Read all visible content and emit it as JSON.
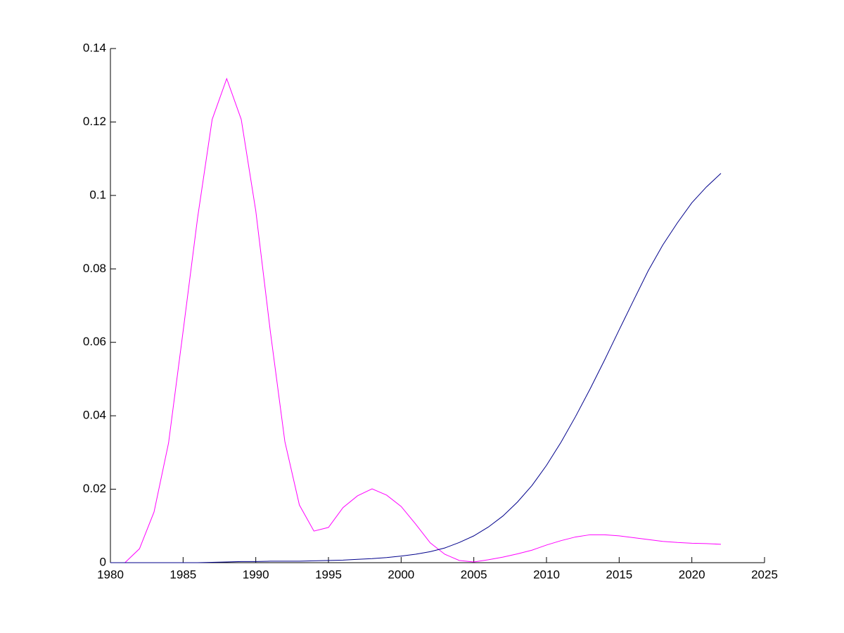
{
  "chart_data": {
    "type": "line",
    "x": [
      1980,
      1981,
      1982,
      1983,
      1984,
      1985,
      1986,
      1987,
      1988,
      1989,
      1990,
      1991,
      1992,
      1993,
      1994,
      1995,
      1996,
      1997,
      1998,
      1999,
      2000,
      2001,
      2002,
      2003,
      2004,
      2005,
      2006,
      2007,
      2008,
      2009,
      2010,
      2011,
      2012,
      2013,
      2014,
      2015,
      2016,
      2017,
      2018,
      2019,
      2020,
      2021,
      2022
    ],
    "series": [
      {
        "color": "#ff00ff",
        "values": [
          0,
          0,
          0.0038,
          0.0138,
          0.0326,
          0.063,
          0.094,
          0.1207,
          0.1318,
          0.1207,
          0.0958,
          0.063,
          0.033,
          0.0157,
          0.0086,
          0.0096,
          0.015,
          0.0182,
          0.0201,
          0.0184,
          0.0153,
          0.0105,
          0.0054,
          0.0023,
          0.0006,
          0.0002,
          0.0008,
          0.0015,
          0.0024,
          0.0034,
          0.0048,
          0.006,
          0.007,
          0.0076,
          0.0076,
          0.0073,
          0.0068,
          0.0063,
          0.0058,
          0.0055,
          0.0053,
          0.0052,
          0.005
        ]
      },
      {
        "color": "#00008b",
        "values": [
          0,
          0,
          0,
          0,
          0,
          0,
          0,
          0.0001,
          0.0002,
          0.0003,
          0.0003,
          0.0004,
          0.0004,
          0.0004,
          0.0005,
          0.0006,
          0.0007,
          0.0009,
          0.0011,
          0.0014,
          0.0018,
          0.0023,
          0.003,
          0.004,
          0.0055,
          0.0073,
          0.0097,
          0.0127,
          0.0165,
          0.021,
          0.0265,
          0.0328,
          0.0398,
          0.0473,
          0.0552,
          0.0634,
          0.0715,
          0.0795,
          0.0865,
          0.0925,
          0.098,
          0.1023,
          0.106
        ]
      }
    ],
    "xlim": [
      1980,
      2025
    ],
    "xticks": [
      1980,
      1985,
      1990,
      1995,
      2000,
      2005,
      2010,
      2015,
      2020,
      2025
    ],
    "ylim": [
      0,
      0.14
    ],
    "yticks": [
      0,
      0.02,
      0.04,
      0.06,
      0.08,
      0.1,
      0.12,
      0.14
    ],
    "grid": false
  }
}
